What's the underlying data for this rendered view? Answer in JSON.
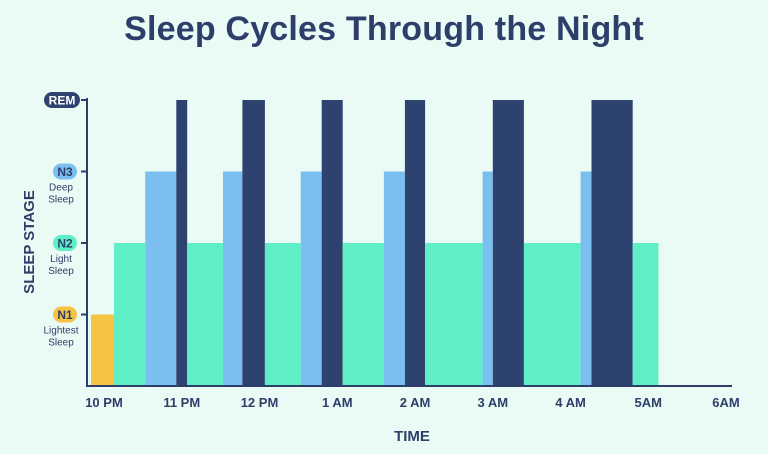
{
  "title": "Sleep Cycles Through the Night",
  "colors": {
    "background": "#e9fbf4",
    "text": "#2d3e6b",
    "N1": "#f6c343",
    "N2": "#5eefc6",
    "N3": "#7bbff0",
    "REM": "#2d426e"
  },
  "chart_data": {
    "type": "bar",
    "title": "Sleep Cycles Through the Night",
    "xlabel": "TIME",
    "ylabel": "SLEEP STAGE",
    "x_ticks": [
      "10 PM",
      "11 PM",
      "12 PM",
      "1 AM",
      "2 AM",
      "3 AM",
      "4 AM",
      "5AM",
      "6AM"
    ],
    "xlim": [
      0,
      8
    ],
    "y_levels": [
      {
        "key": "N1",
        "badge": "N1",
        "desc": [
          "Lightest",
          "Sleep"
        ],
        "level": 1
      },
      {
        "key": "N2",
        "badge": "N2",
        "desc": [
          "Light",
          "Sleep"
        ],
        "level": 2
      },
      {
        "key": "N3",
        "badge": "N3",
        "desc": [
          "Deep",
          "Sleep"
        ],
        "level": 3
      },
      {
        "key": "REM",
        "badge": "REM",
        "desc": [],
        "level": 4
      }
    ],
    "ylim": [
      0,
      4
    ],
    "grid": false,
    "segments": [
      {
        "stage": "N1",
        "start": 0.0,
        "end": 0.13
      },
      {
        "stage": "N2",
        "start": 0.13,
        "end": 0.53
      },
      {
        "stage": "N3",
        "start": 0.53,
        "end": 0.93
      },
      {
        "stage": "REM",
        "start": 0.93,
        "end": 1.07
      },
      {
        "stage": "N2",
        "start": 1.07,
        "end": 1.53
      },
      {
        "stage": "N3",
        "start": 1.53,
        "end": 1.78
      },
      {
        "stage": "REM",
        "start": 1.78,
        "end": 2.07
      },
      {
        "stage": "N2",
        "start": 2.07,
        "end": 2.53
      },
      {
        "stage": "N3",
        "start": 2.53,
        "end": 2.8
      },
      {
        "stage": "REM",
        "start": 2.8,
        "end": 3.07
      },
      {
        "stage": "N2",
        "start": 3.07,
        "end": 3.6
      },
      {
        "stage": "N3",
        "start": 3.6,
        "end": 3.87
      },
      {
        "stage": "REM",
        "start": 3.87,
        "end": 4.13
      },
      {
        "stage": "N2",
        "start": 4.13,
        "end": 4.87
      },
      {
        "stage": "N3",
        "start": 4.87,
        "end": 5.0
      },
      {
        "stage": "REM",
        "start": 5.0,
        "end": 5.4
      },
      {
        "stage": "N2",
        "start": 5.4,
        "end": 6.13
      },
      {
        "stage": "N3",
        "start": 6.13,
        "end": 6.27
      },
      {
        "stage": "REM",
        "start": 6.27,
        "end": 6.8
      },
      {
        "stage": "N2",
        "start": 6.8,
        "end": 7.13
      }
    ]
  }
}
